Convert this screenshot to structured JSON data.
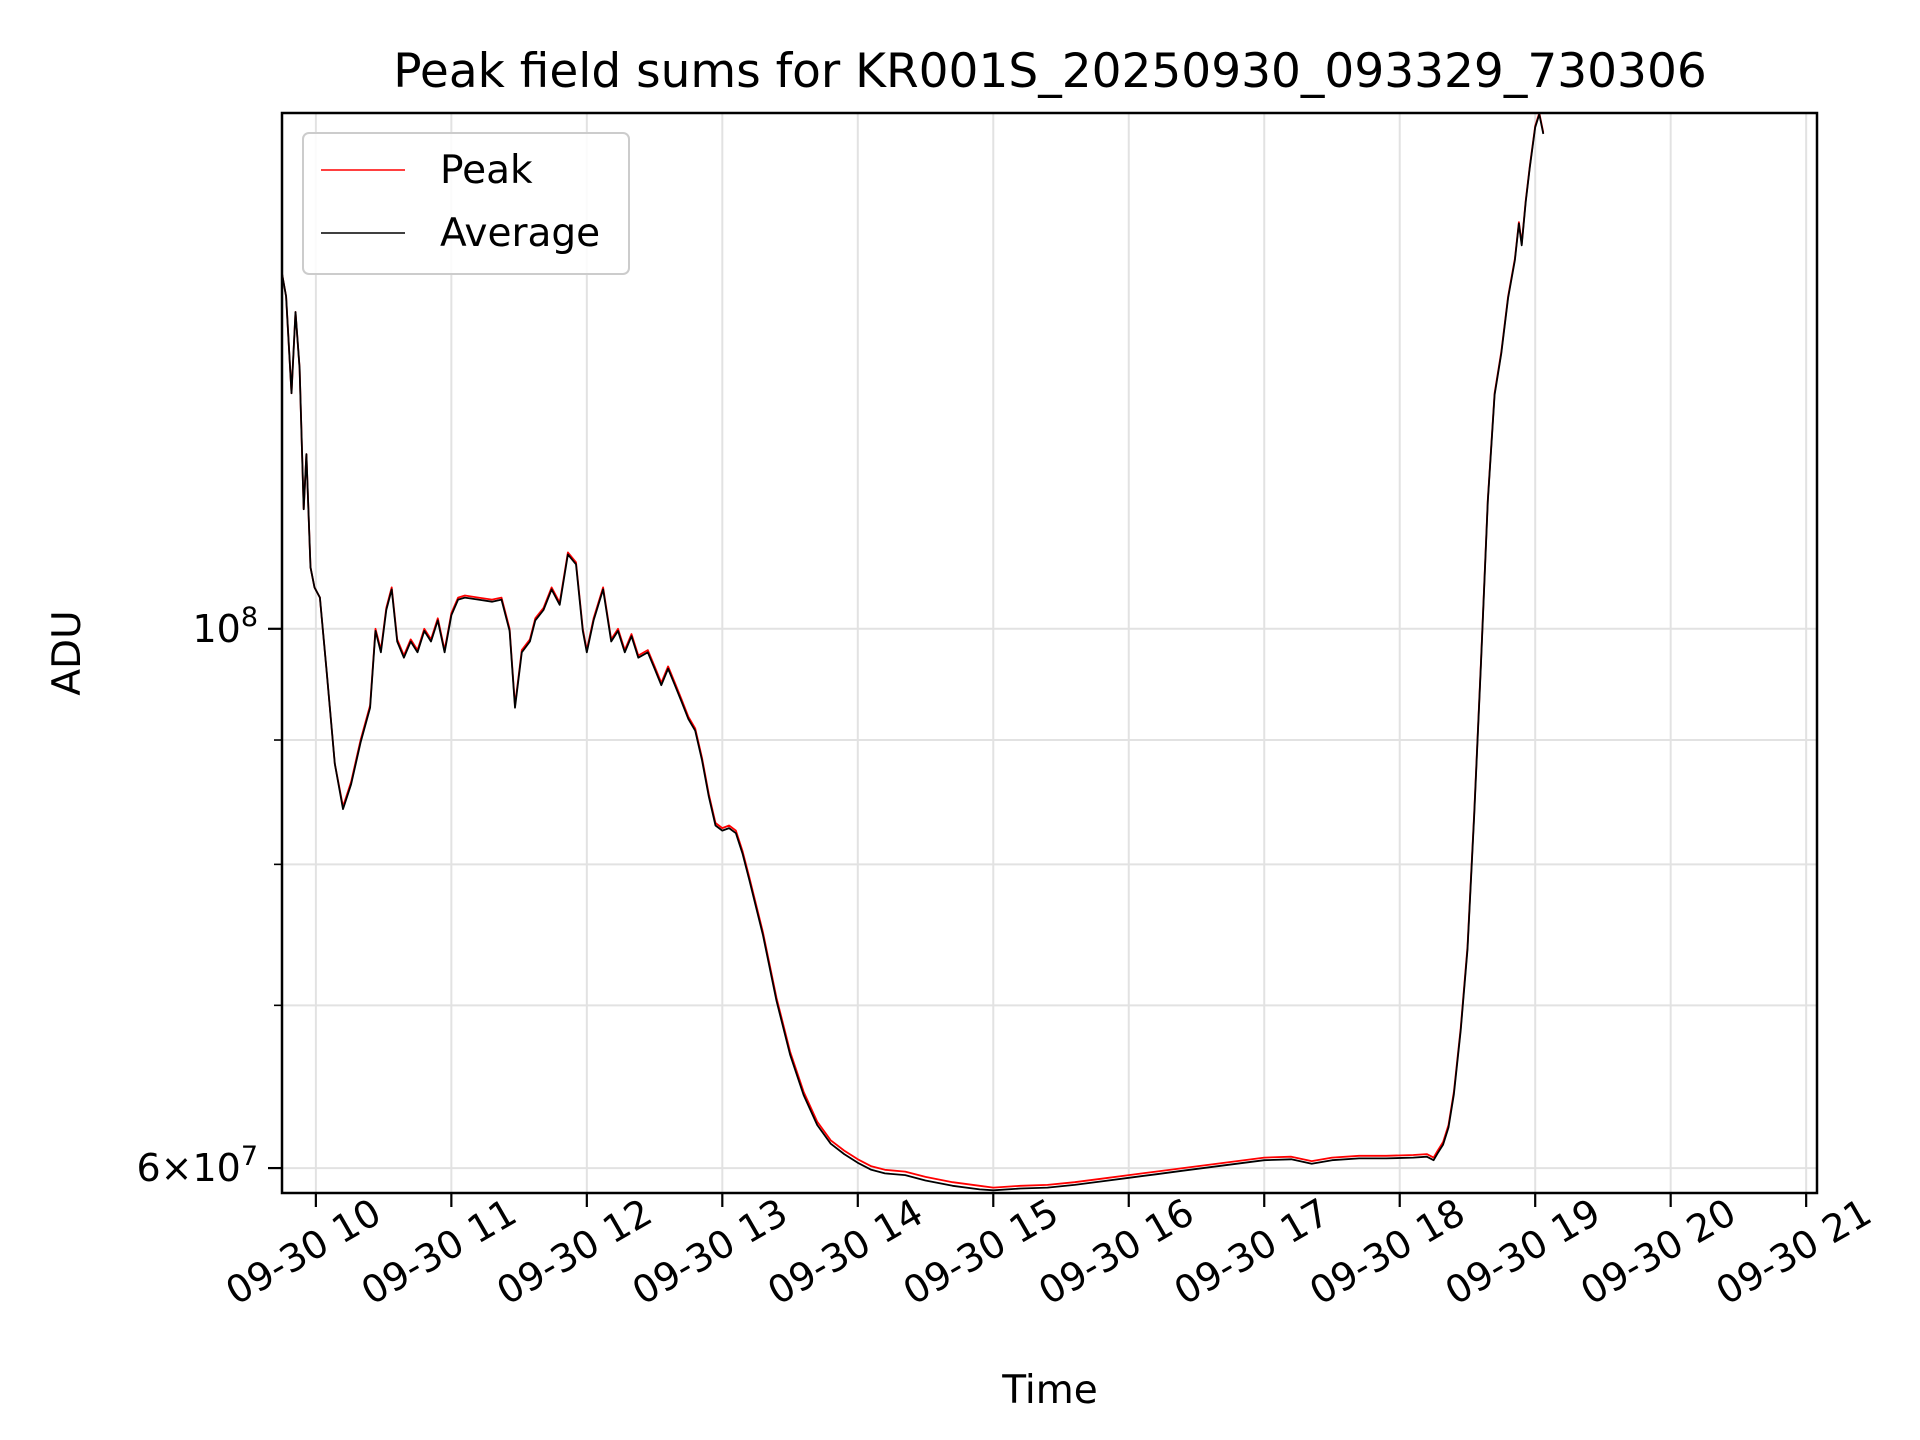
{
  "chart_data": {
    "type": "line",
    "title": "Peak field sums for KR001S_20250930_093329_730306",
    "xlabel": "Time",
    "ylabel": "ADU",
    "yscale": "log",
    "xlim": [
      9.75,
      21.08
    ],
    "ylim": [
      58600000,
      163000000
    ],
    "grid": true,
    "legend_location": "top-left",
    "x_ticks": [
      {
        "value": 10,
        "label": "09-30 10"
      },
      {
        "value": 11,
        "label": "09-30 11"
      },
      {
        "value": 12,
        "label": "09-30 12"
      },
      {
        "value": 13,
        "label": "09-30 13"
      },
      {
        "value": 14,
        "label": "09-30 14"
      },
      {
        "value": 15,
        "label": "09-30 15"
      },
      {
        "value": 16,
        "label": "09-30 16"
      },
      {
        "value": 17,
        "label": "09-30 17"
      },
      {
        "value": 18,
        "label": "09-30 18"
      },
      {
        "value": 19,
        "label": "09-30 19"
      },
      {
        "value": 20,
        "label": "09-30 20"
      },
      {
        "value": 21,
        "label": "09-30 21"
      }
    ],
    "y_major_ticks": [
      {
        "value": 100000000,
        "base": "10",
        "exp": "8"
      },
      {
        "value": 60000000,
        "coef": "6",
        "base": "10",
        "exp": "7"
      }
    ],
    "y_minor_ticks": [
      70000000,
      80000000,
      90000000
    ],
    "series": [
      {
        "name": "Peak",
        "color": "#ff0000",
        "points": [
          [
            9.75,
            140000000
          ],
          [
            9.78,
            137000000
          ],
          [
            9.82,
            125000000
          ],
          [
            9.85,
            135000000
          ],
          [
            9.88,
            128000000
          ],
          [
            9.91,
            112000000
          ],
          [
            9.93,
            118000000
          ],
          [
            9.96,
            106000000
          ],
          [
            9.99,
            104000000
          ],
          [
            10.03,
            103000000
          ],
          [
            10.08,
            96000000
          ],
          [
            10.14,
            88000000
          ],
          [
            10.2,
            84500000
          ],
          [
            10.26,
            86500000
          ],
          [
            10.33,
            90000000
          ],
          [
            10.4,
            93000000
          ],
          [
            10.44,
            100000000
          ],
          [
            10.48,
            98000000
          ],
          [
            10.52,
            102000000
          ],
          [
            10.56,
            104000000
          ],
          [
            10.6,
            99000000
          ],
          [
            10.65,
            97500000
          ],
          [
            10.7,
            99000000
          ],
          [
            10.75,
            98000000
          ],
          [
            10.8,
            100000000
          ],
          [
            10.85,
            99000000
          ],
          [
            10.9,
            101000000
          ],
          [
            10.95,
            98000000
          ],
          [
            11.0,
            101500000
          ],
          [
            11.05,
            103000000
          ],
          [
            11.1,
            103200000
          ],
          [
            11.2,
            103000000
          ],
          [
            11.3,
            102800000
          ],
          [
            11.37,
            103000000
          ],
          [
            11.43,
            100000000
          ],
          [
            11.47,
            93000000
          ],
          [
            11.52,
            98000000
          ],
          [
            11.58,
            99000000
          ],
          [
            11.62,
            101000000
          ],
          [
            11.68,
            102000000
          ],
          [
            11.74,
            104000000
          ],
          [
            11.8,
            102500000
          ],
          [
            11.86,
            107500000
          ],
          [
            11.92,
            106500000
          ],
          [
            11.97,
            100000000
          ],
          [
            12.0,
            98000000
          ],
          [
            12.05,
            101000000
          ],
          [
            12.12,
            104000000
          ],
          [
            12.18,
            99000000
          ],
          [
            12.23,
            100000000
          ],
          [
            12.28,
            98000000
          ],
          [
            12.33,
            99500000
          ],
          [
            12.38,
            97500000
          ],
          [
            12.45,
            98000000
          ],
          [
            12.5,
            96500000
          ],
          [
            12.55,
            95000000
          ],
          [
            12.6,
            96500000
          ],
          [
            12.65,
            95000000
          ],
          [
            12.7,
            93500000
          ],
          [
            12.75,
            92000000
          ],
          [
            12.8,
            91000000
          ],
          [
            12.85,
            88500000
          ],
          [
            12.9,
            85500000
          ],
          [
            12.95,
            83200000
          ],
          [
            13.0,
            82800000
          ],
          [
            13.05,
            83000000
          ],
          [
            13.1,
            82600000
          ],
          [
            13.15,
            81000000
          ],
          [
            13.2,
            79000000
          ],
          [
            13.3,
            75000000
          ],
          [
            13.4,
            70500000
          ],
          [
            13.5,
            67000000
          ],
          [
            13.6,
            64500000
          ],
          [
            13.7,
            62700000
          ],
          [
            13.8,
            61600000
          ],
          [
            13.9,
            61000000
          ],
          [
            14.0,
            60500000
          ],
          [
            14.1,
            60100000
          ],
          [
            14.2,
            59900000
          ],
          [
            14.35,
            59800000
          ],
          [
            14.5,
            59500000
          ],
          [
            14.7,
            59200000
          ],
          [
            14.9,
            59000000
          ],
          [
            15.0,
            58900000
          ],
          [
            15.2,
            59000000
          ],
          [
            15.4,
            59050000
          ],
          [
            15.6,
            59200000
          ],
          [
            15.8,
            59400000
          ],
          [
            16.0,
            59600000
          ],
          [
            16.2,
            59800000
          ],
          [
            16.4,
            60000000
          ],
          [
            16.6,
            60200000
          ],
          [
            16.8,
            60400000
          ],
          [
            17.0,
            60600000
          ],
          [
            17.2,
            60650000
          ],
          [
            17.35,
            60400000
          ],
          [
            17.5,
            60600000
          ],
          [
            17.7,
            60700000
          ],
          [
            17.9,
            60700000
          ],
          [
            18.1,
            60750000
          ],
          [
            18.2,
            60800000
          ],
          [
            18.25,
            60600000
          ],
          [
            18.28,
            61000000
          ],
          [
            18.32,
            61500000
          ],
          [
            18.36,
            62500000
          ],
          [
            18.4,
            64500000
          ],
          [
            18.45,
            68500000
          ],
          [
            18.5,
            74000000
          ],
          [
            18.55,
            84000000
          ],
          [
            18.6,
            97000000
          ],
          [
            18.65,
            113000000
          ],
          [
            18.7,
            125000000
          ],
          [
            18.75,
            130000000
          ],
          [
            18.8,
            137000000
          ],
          [
            18.85,
            142000000
          ],
          [
            18.88,
            147000000
          ],
          [
            18.9,
            144000000
          ],
          [
            18.93,
            150000000
          ],
          [
            18.96,
            155000000
          ],
          [
            19.0,
            161000000
          ],
          [
            19.03,
            163000000
          ],
          [
            19.06,
            160000000
          ]
        ]
      },
      {
        "name": "Average",
        "color": "#000000",
        "points": [
          [
            9.75,
            140000000
          ],
          [
            9.78,
            137000000
          ],
          [
            9.82,
            125000000
          ],
          [
            9.85,
            135000000
          ],
          [
            9.88,
            128000000
          ],
          [
            9.91,
            112000000
          ],
          [
            9.93,
            118000000
          ],
          [
            9.96,
            106000000
          ],
          [
            9.99,
            104000000
          ],
          [
            10.03,
            103000000
          ],
          [
            10.08,
            96000000
          ],
          [
            10.14,
            88000000
          ],
          [
            10.2,
            84300000
          ],
          [
            10.26,
            86300000
          ],
          [
            10.33,
            89800000
          ],
          [
            10.4,
            92800000
          ],
          [
            10.44,
            99800000
          ],
          [
            10.48,
            97800000
          ],
          [
            10.52,
            101800000
          ],
          [
            10.56,
            103800000
          ],
          [
            10.6,
            98800000
          ],
          [
            10.65,
            97300000
          ],
          [
            10.7,
            98800000
          ],
          [
            10.75,
            97800000
          ],
          [
            10.8,
            99800000
          ],
          [
            10.85,
            98800000
          ],
          [
            10.9,
            100800000
          ],
          [
            10.95,
            97800000
          ],
          [
            11.0,
            101300000
          ],
          [
            11.05,
            102800000
          ],
          [
            11.1,
            103000000
          ],
          [
            11.2,
            102800000
          ],
          [
            11.3,
            102600000
          ],
          [
            11.37,
            102800000
          ],
          [
            11.43,
            99800000
          ],
          [
            11.47,
            92800000
          ],
          [
            11.52,
            97800000
          ],
          [
            11.58,
            98800000
          ],
          [
            11.62,
            100800000
          ],
          [
            11.68,
            101800000
          ],
          [
            11.74,
            103800000
          ],
          [
            11.8,
            102300000
          ],
          [
            11.86,
            107300000
          ],
          [
            11.92,
            106300000
          ],
          [
            11.97,
            99800000
          ],
          [
            12.0,
            97800000
          ],
          [
            12.05,
            100800000
          ],
          [
            12.12,
            103800000
          ],
          [
            12.18,
            98800000
          ],
          [
            12.23,
            99800000
          ],
          [
            12.28,
            97800000
          ],
          [
            12.33,
            99300000
          ],
          [
            12.38,
            97300000
          ],
          [
            12.45,
            97800000
          ],
          [
            12.5,
            96300000
          ],
          [
            12.55,
            94800000
          ],
          [
            12.6,
            96300000
          ],
          [
            12.65,
            94800000
          ],
          [
            12.7,
            93300000
          ],
          [
            12.75,
            91800000
          ],
          [
            12.8,
            90800000
          ],
          [
            12.85,
            88300000
          ],
          [
            12.9,
            85300000
          ],
          [
            12.95,
            83000000
          ],
          [
            13.0,
            82600000
          ],
          [
            13.05,
            82800000
          ],
          [
            13.1,
            82400000
          ],
          [
            13.15,
            80800000
          ],
          [
            13.2,
            78800000
          ],
          [
            13.3,
            74800000
          ],
          [
            13.4,
            70300000
          ],
          [
            13.5,
            66800000
          ],
          [
            13.6,
            64300000
          ],
          [
            13.7,
            62500000
          ],
          [
            13.8,
            61400000
          ],
          [
            13.9,
            60800000
          ],
          [
            14.0,
            60300000
          ],
          [
            14.1,
            59900000
          ],
          [
            14.2,
            59700000
          ],
          [
            14.35,
            59600000
          ],
          [
            14.5,
            59300000
          ],
          [
            14.7,
            59000000
          ],
          [
            14.9,
            58800000
          ],
          [
            15.0,
            58750000
          ],
          [
            15.2,
            58850000
          ],
          [
            15.4,
            58900000
          ],
          [
            15.6,
            59050000
          ],
          [
            15.8,
            59250000
          ],
          [
            16.0,
            59450000
          ],
          [
            16.2,
            59650000
          ],
          [
            16.4,
            59850000
          ],
          [
            16.6,
            60050000
          ],
          [
            16.8,
            60250000
          ],
          [
            17.0,
            60450000
          ],
          [
            17.2,
            60500000
          ],
          [
            17.35,
            60250000
          ],
          [
            17.5,
            60450000
          ],
          [
            17.7,
            60550000
          ],
          [
            17.9,
            60550000
          ],
          [
            18.1,
            60600000
          ],
          [
            18.2,
            60650000
          ],
          [
            18.25,
            60450000
          ],
          [
            18.28,
            60850000
          ],
          [
            18.32,
            61350000
          ],
          [
            18.36,
            62350000
          ],
          [
            18.4,
            64350000
          ],
          [
            18.45,
            68350000
          ],
          [
            18.5,
            73800000
          ],
          [
            18.55,
            83800000
          ],
          [
            18.6,
            96800000
          ],
          [
            18.65,
            112800000
          ],
          [
            18.7,
            124800000
          ],
          [
            18.75,
            129800000
          ],
          [
            18.8,
            136800000
          ],
          [
            18.85,
            141800000
          ],
          [
            18.88,
            146800000
          ],
          [
            18.9,
            143800000
          ],
          [
            18.93,
            149800000
          ],
          [
            18.96,
            154800000
          ],
          [
            19.0,
            160800000
          ],
          [
            19.03,
            162800000
          ],
          [
            19.06,
            159800000
          ]
        ]
      }
    ]
  }
}
